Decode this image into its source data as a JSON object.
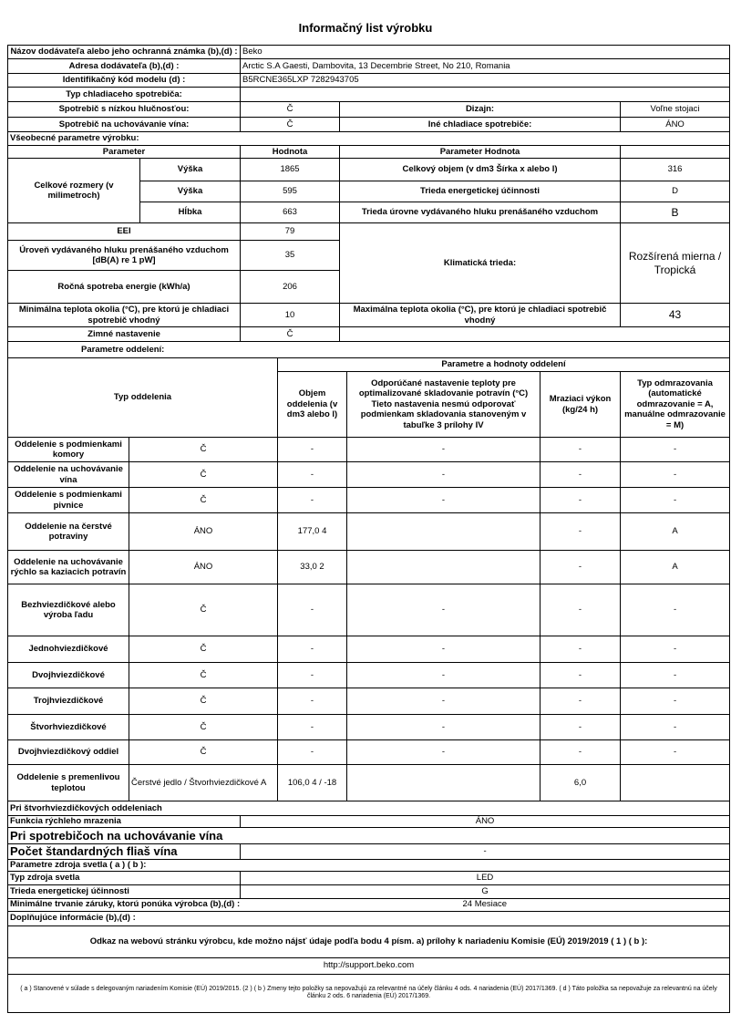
{
  "title": "Informačný list výrobku",
  "supplier": {
    "name_label": "Názov dodávateľa alebo jeho ochranná známka (b),(d) :",
    "name": "Beko",
    "address_label": "Adresa dodávateľa (b),(d) :",
    "address": "Arctic S.A  Gaesti, Dambovita, 13 Decembrie Street, No 210, Romania",
    "model_label": "Identifikačný kód modelu (d) :",
    "model": "B5RCNE365LXP 7282943705",
    "type_label": "Typ chladiaceho spotrebiča:",
    "type": ""
  },
  "appliance": {
    "low_noise_label": "Spotrebič s nízkou hlučnosťou:",
    "low_noise": "Č",
    "design_label": "Dizajn:",
    "design": "Voľne stojaci",
    "wine_label": "Spotrebič na uchovávanie vína:",
    "wine": "Č",
    "other_label": "Iné chladiace spotrebiče:",
    "other": "ÁNO"
  },
  "general": {
    "section": "Všeobecné parametre výrobku:",
    "h_param": "Parameter",
    "h_value": "Hodnota",
    "h_param_value": "Parameter Hodnota",
    "dims_label": "Celkové rozmery (v milimetroch)",
    "height_label": "Výška",
    "height": "1865",
    "width_label": "Výška",
    "width": "595",
    "depth_label": "Hĺbka",
    "depth": "663",
    "volume_label": "Celkový objem (v dm3 Šírka x alebo l)",
    "volume": "316",
    "energy_class_label": "Trieda energetickej účinnosti",
    "energy_class": "D",
    "noise_class_label": "Trieda úrovne vydávaného hluku prenášaného vzduchom",
    "noise_class": "B",
    "eei_label": "EEI",
    "eei": "79",
    "noise_label": "Úroveň vydávaného hluku prenášaného vzduchom [dB(A) re 1 pW]",
    "noise": "35",
    "climate_label": "Klimatická trieda:",
    "climate": "Rozšírená mierna / Tropická",
    "annual_energy_label": "Ročná spotreba energie (kWh/a)",
    "annual_energy": "206",
    "min_temp_label": "Minimálna teplota okolia (°C), pre ktorú je chladiaci spotrebič vhodný",
    "min_temp": "10",
    "max_temp_label": "Maximálna teplota okolia (°C), pre ktorú je chladiaci spotrebič vhodný",
    "max_temp": "43",
    "winter_label": "Zimné nastavenie",
    "winter": "Č"
  },
  "compartments": {
    "section": "Parametre oddelení:",
    "h_type": "Typ oddelenia",
    "h_params": "Parametre a hodnoty oddelení",
    "h_volume": "Objem oddelenia (v dm3 alebo l)",
    "h_temp": "Odporúčané nastavenie teploty pre optimalizované skladovanie potravín (°C) Tieto nastavenia nesmú odporovať podmienkam skladovania stanoveným v tabuľke 3 prílohy IV",
    "h_freeze": "Mraziaci výkon (kg/24 h)",
    "h_defrost": "Typ odmrazovania (automatické odmrazovanie = A, manuálne odmrazovanie = M)",
    "rows": [
      {
        "name": "Oddelenie s podmienkami komory",
        "present": "Č",
        "volume": "-",
        "temp": "-",
        "freeze": "-",
        "defrost": "-"
      },
      {
        "name": "Oddelenie na uchovávanie vína",
        "present": "Č",
        "volume": "-",
        "temp": "-",
        "freeze": "-",
        "defrost": "-"
      },
      {
        "name": "Oddelenie s podmienkami pivnice",
        "present": "Č",
        "volume": "-",
        "temp": "-",
        "freeze": "-",
        "defrost": "-"
      },
      {
        "name": "Oddelenie na čerstvé potraviny",
        "present": "ÁNO",
        "volume": "177,0 4",
        "temp": "",
        "freeze": "-",
        "defrost": "A"
      },
      {
        "name": "Oddelenie na uchovávanie rýchlo sa kaziacich potravín",
        "present": "ÁNO",
        "volume": "33,0 2",
        "temp": "",
        "freeze": "-",
        "defrost": "A"
      },
      {
        "name": "Bezhviezdičkové alebo výroba ľadu",
        "present": "Č",
        "volume": "-",
        "temp": "-",
        "freeze": "-",
        "defrost": "-"
      },
      {
        "name": "Jednohviezdičkové",
        "present": "Č",
        "volume": "-",
        "temp": "-",
        "freeze": "-",
        "defrost": "-"
      },
      {
        "name": "Dvojhviezdičkové",
        "present": "Č",
        "volume": "-",
        "temp": "-",
        "freeze": "-",
        "defrost": "-"
      },
      {
        "name": "Trojhviezdičkové",
        "present": "Č",
        "volume": "-",
        "temp": "-",
        "freeze": "-",
        "defrost": "-"
      },
      {
        "name": "Štvorhviezdičkové",
        "present": "Č",
        "volume": "-",
        "temp": "-",
        "freeze": "-",
        "defrost": "-"
      },
      {
        "name": "Dvojhviezdičkový oddiel",
        "present": "Č",
        "volume": "-",
        "temp": "-",
        "freeze": "-",
        "defrost": "-"
      },
      {
        "name": "Oddelenie s premenlivou teplotou",
        "present": "Čerstvé jedlo / Štvorhviezdičkové A",
        "volume": "106,0 4 / -18",
        "temp": "",
        "freeze": "6,0",
        "defrost": ""
      }
    ]
  },
  "four_star": {
    "section": "Pri štvorhviezdičkových oddeleniach",
    "fast_freeze_label": "Funkcia rýchleho mrazenia",
    "fast_freeze": "ÁNO"
  },
  "wine": {
    "section": "Pri spotrebičoch na uchovávanie vína",
    "bottles_label": "Počet štandardných fliaš vína",
    "bottles": "-"
  },
  "light": {
    "section": "Parametre zdroja svetla ( a ) ( b ):",
    "type_label": "Typ zdroja svetla",
    "type": "LED",
    "class_label": "Trieda energetickej účinnosti",
    "class": "G"
  },
  "warranty": {
    "label": "Minimálne trvanie záruky, ktorú ponúka výrobca (b),(d) :",
    "value": "24 Mesiace"
  },
  "additional": {
    "label": "Doplňujúce informácie (b),(d) :",
    "link_label": "Odkaz na webovú stránku výrobcu, kde možno nájsť údaje podľa bodu 4 písm. a) prílohy k nariadeniu Komisie (EÚ) 2019/2019 ( 1 ) ( b ):",
    "url": "http://support.beko.com"
  },
  "footnote": "( a ) Stanovené v súlade s delegovaným nariadením Komisie (EÚ) 2019/2015. (2 ) ( b ) Zmeny tejto položky sa nepovažujú za relevantné na účely článku 4 ods. 4 nariadenia (EÚ) 2017/1369. ( d ) Táto položka sa nepovažuje za relevantnú na účely článku 2 ods. 6 nariadenia (EÚ) 2017/1369."
}
